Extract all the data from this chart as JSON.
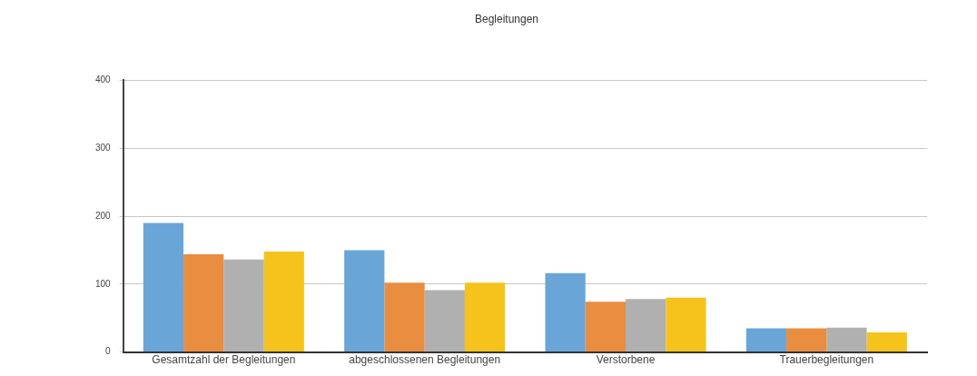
{
  "chart_data": {
    "type": "bar",
    "title": "Begleitungen",
    "categories": [
      "Gesamtzahl der Begleitungen",
      "abgeschlossenen Begleitungen",
      "Verstorbene",
      "Trauerbegleitungen"
    ],
    "series": [
      {
        "color": "#6aa5d8",
        "values": [
          190,
          150,
          116,
          35
        ]
      },
      {
        "color": "#e98d41",
        "values": [
          144,
          102,
          74,
          35
        ]
      },
      {
        "color": "#b0b0b0",
        "values": [
          136,
          91,
          78,
          36
        ]
      },
      {
        "color": "#f5c31c",
        "values": [
          148,
          102,
          80,
          29
        ]
      }
    ],
    "ylim": [
      0,
      400
    ],
    "yticks": [
      0,
      100,
      200,
      300,
      400
    ],
    "grid": "y",
    "legend": false
  }
}
